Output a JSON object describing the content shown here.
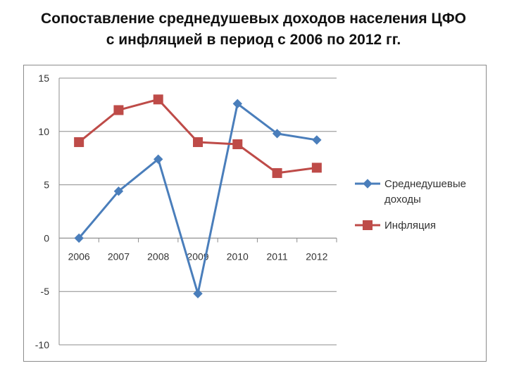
{
  "title": {
    "line1": "Сопоставление среднедушевых доходов населения ЦФО",
    "line2": "с инфляцией в период с 2006 по 2012 гг."
  },
  "chart_data": {
    "type": "line",
    "title": "Сопоставление среднедушевых доходов населения ЦФО с инфляцией в период с 2006 по 2012 гг.",
    "categories": [
      "2006",
      "2007",
      "2008",
      "2009",
      "2010",
      "2011",
      "2012"
    ],
    "series": [
      {
        "name": "Среднедушевые доходы",
        "legend_lines": [
          "Среднедушевые",
          "доходы"
        ],
        "color": "#4a7ebb",
        "marker": "diamond",
        "values": [
          0,
          4.4,
          7.4,
          -5.2,
          12.6,
          9.8,
          9.2
        ]
      },
      {
        "name": "Инфляция",
        "legend_lines": [
          "Инфляция"
        ],
        "color": "#be4b48",
        "marker": "square",
        "values": [
          9,
          12,
          13,
          9,
          8.8,
          6.1,
          6.6
        ]
      }
    ],
    "y_ticks": [
      "15",
      "10",
      "5",
      "0",
      "-5",
      "-10"
    ],
    "ylim": [
      -10,
      15
    ],
    "grid": true,
    "legend_position": "right",
    "xlabel": "",
    "ylabel": ""
  }
}
